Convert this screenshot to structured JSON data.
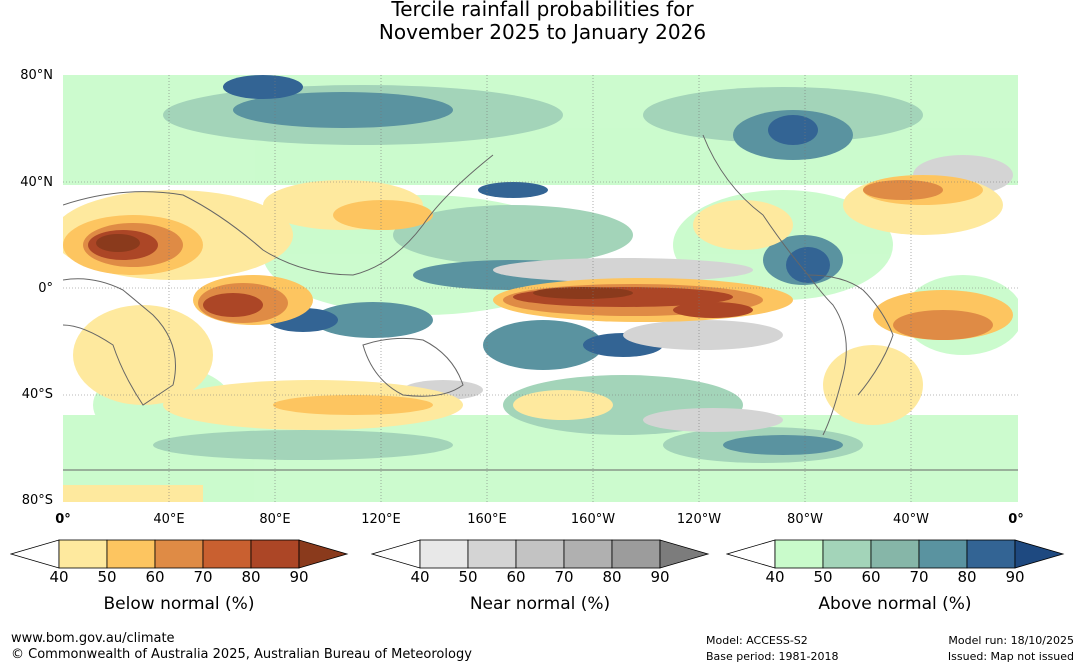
{
  "title": {
    "line1": "Tercile rainfall probabilities for",
    "line2": "November 2025 to January 2026"
  },
  "map": {
    "lat_labels": [
      "80°N",
      "40°N",
      "0°",
      "40°S",
      "80°S"
    ],
    "lon_labels": [
      "0°",
      "40°E",
      "80°E",
      "120°E",
      "160°E",
      "160°W",
      "120°W",
      "80°W",
      "40°W",
      "0°"
    ],
    "ocean_color": "#ffffff",
    "coast_color": "#666666"
  },
  "legend": {
    "below": {
      "title": "Below normal (%)",
      "ticks": [
        "40",
        "50",
        "60",
        "70",
        "80",
        "90"
      ],
      "colors": [
        "#ffffff",
        "#fee99e",
        "#fdc560",
        "#df8b45",
        "#c96030",
        "#ac4626",
        "#8a3a1c"
      ]
    },
    "near": {
      "title": "Near normal (%)",
      "ticks": [
        "40",
        "50",
        "60",
        "70",
        "80",
        "90"
      ],
      "colors": [
        "#ffffff",
        "#e8e8e8",
        "#d4d4d4",
        "#c3c3c3",
        "#b0b0b0",
        "#9c9c9c",
        "#7c7c7c"
      ]
    },
    "above": {
      "title": "Above normal (%)",
      "ticks": [
        "40",
        "50",
        "60",
        "70",
        "80",
        "90"
      ],
      "colors": [
        "#ffffff",
        "#c9fbcb",
        "#a3d4b9",
        "#86b6a8",
        "#5a93a0",
        "#336494",
        "#1e4980"
      ]
    }
  },
  "footer": {
    "url": "www.bom.gov.au/climate",
    "copyright": "© Commonwealth of Australia 2025, Australian Bureau of Meteorology",
    "model": "Model: ACCESS-S2",
    "base_period": "Base period: 1981-2018",
    "model_run": "Model run: 18/10/2025",
    "issued": "Issued: Map not issued"
  }
}
